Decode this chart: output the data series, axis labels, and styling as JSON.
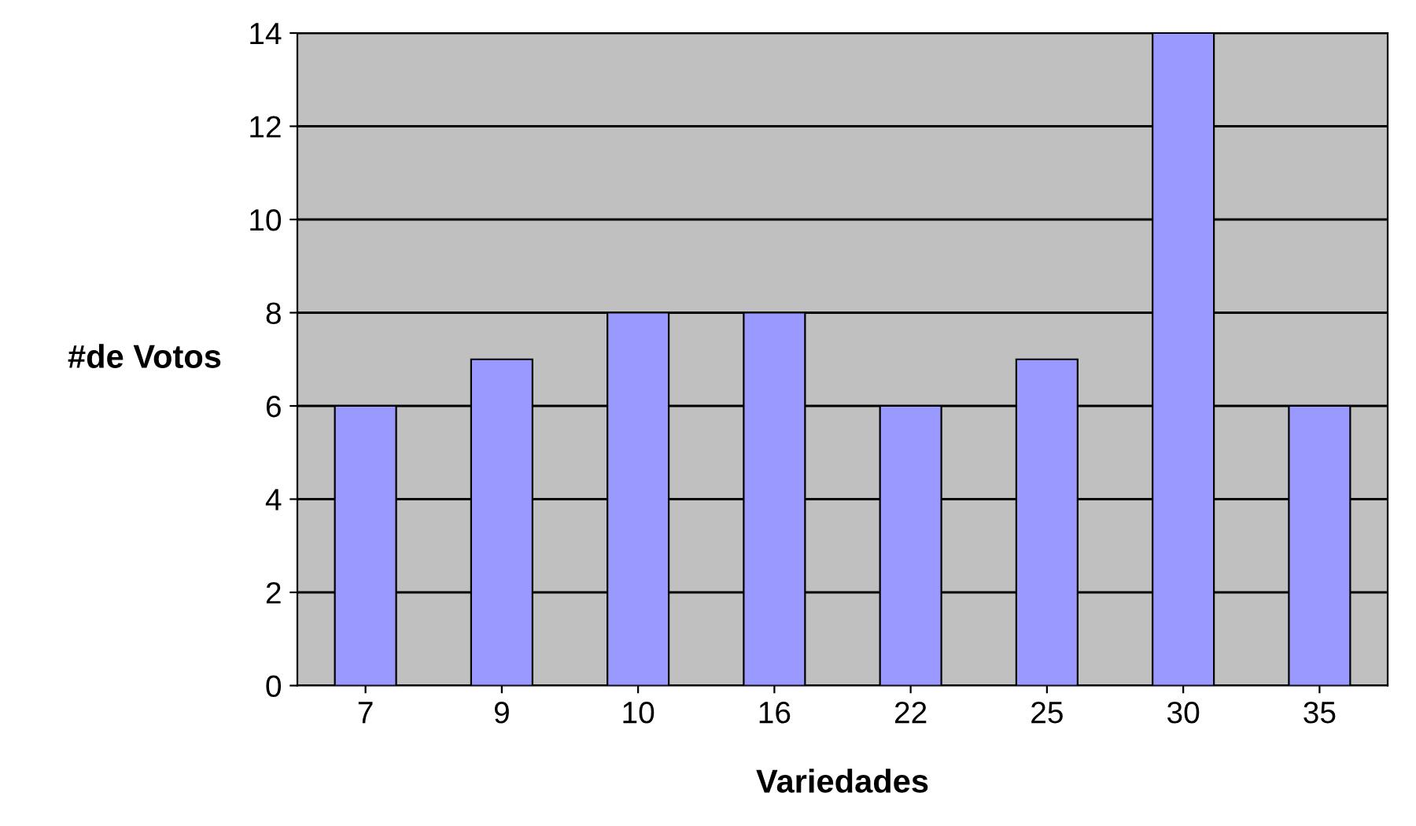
{
  "chart_data": {
    "type": "bar",
    "xlabel": "Variedades",
    "ylabel": "#de Votos",
    "categories": [
      "7",
      "9",
      "10",
      "16",
      "22",
      "25",
      "30",
      "35"
    ],
    "values": [
      6,
      7,
      8,
      8,
      6,
      7,
      14,
      6
    ],
    "color": "#9999ff",
    "ylim": [
      0,
      14
    ],
    "yticks": [
      0,
      2,
      4,
      6,
      8,
      10,
      12,
      14
    ],
    "grid": "y"
  }
}
